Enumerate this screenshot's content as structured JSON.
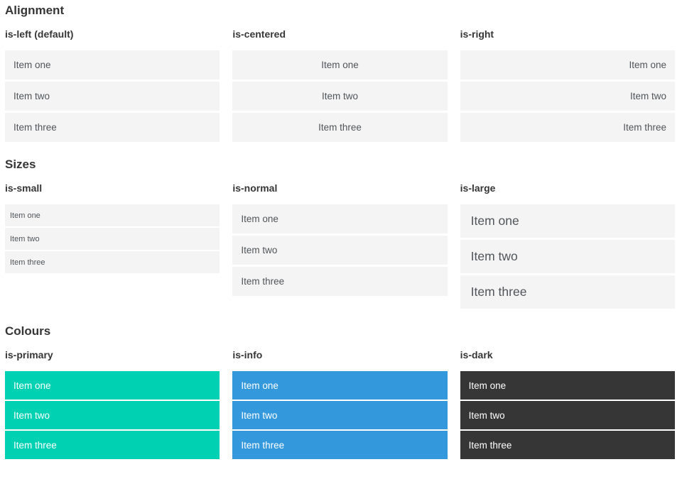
{
  "page": {
    "sections": [
      {
        "title": "Alignment",
        "groups": [
          {
            "label": "is-left (default)",
            "items": [
              "Item one",
              "Item two",
              "Item three"
            ]
          },
          {
            "label": "is-centered",
            "items": [
              "Item one",
              "Item two",
              "Item three"
            ]
          },
          {
            "label": "is-right",
            "items": [
              "Item one",
              "Item two",
              "Item three"
            ]
          }
        ]
      },
      {
        "title": "Sizes",
        "groups": [
          {
            "label": "is-small",
            "items": [
              "Item one",
              "Item two",
              "Item three"
            ]
          },
          {
            "label": "is-normal",
            "items": [
              "Item one",
              "Item two",
              "Item three"
            ]
          },
          {
            "label": "is-large",
            "items": [
              "Item one",
              "Item two",
              "Item three"
            ]
          }
        ]
      },
      {
        "title": "Colours",
        "groups": [
          {
            "label": "is-primary",
            "items": [
              "Item one",
              "Item two",
              "Item three"
            ]
          },
          {
            "label": "is-info",
            "items": [
              "Item one",
              "Item two",
              "Item three"
            ]
          },
          {
            "label": "is-dark",
            "items": [
              "Item one",
              "Item two",
              "Item three"
            ]
          }
        ]
      }
    ],
    "colors": {
      "item_background": "#f4f4f4",
      "item_text": "#515559",
      "heading_text": "#363636",
      "primary": "#00d1b2",
      "info": "#3398dc",
      "dark": "#363636",
      "colored_item_text": "#ffffff"
    }
  }
}
